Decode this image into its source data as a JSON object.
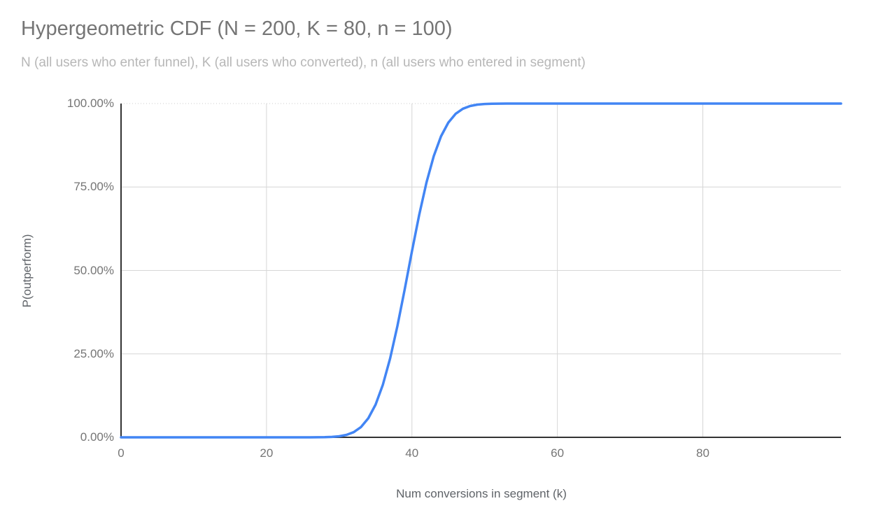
{
  "header": {
    "title": "Hypergeometric CDF (N = 200, K = 80, n = 100)",
    "subtitle": "N (all users who enter funnel), K (all users who converted), n (all users who entered in segment)"
  },
  "chart_data": {
    "type": "line",
    "title": "Hypergeometric CDF (N = 200, K = 80, n = 100)",
    "subtitle": "N (all users who enter funnel), K (all users who converted), n (all users who entered in segment)",
    "xlabel": "Num conversions in segment (k)",
    "ylabel": "P(outperform)",
    "xlim": [
      0,
      99
    ],
    "ylim": [
      0,
      1
    ],
    "x_ticks": [
      0,
      20,
      40,
      60,
      80
    ],
    "y_ticks": [
      {
        "value": 0.0,
        "label": "0.00%"
      },
      {
        "value": 0.25,
        "label": "25.00%"
      },
      {
        "value": 0.5,
        "label": "50.00%"
      },
      {
        "value": 0.75,
        "label": "75.00%"
      },
      {
        "value": 1.0,
        "label": "100.00%"
      }
    ],
    "grid": true,
    "legend": "none",
    "series": [
      {
        "name": "P(outperform)",
        "color": "#4285F4",
        "points": [
          [
            0,
            0
          ],
          [
            5,
            0
          ],
          [
            10,
            0
          ],
          [
            15,
            0
          ],
          [
            20,
            0
          ],
          [
            24,
            0
          ],
          [
            25,
            0
          ],
          [
            26,
            0.0001
          ],
          [
            27,
            0.0002
          ],
          [
            28,
            0.0005
          ],
          [
            29,
            0.0013
          ],
          [
            30,
            0.0032
          ],
          [
            31,
            0.0073
          ],
          [
            32,
            0.0156
          ],
          [
            33,
            0.0309
          ],
          [
            34,
            0.0571
          ],
          [
            35,
            0.098
          ],
          [
            36,
            0.1574
          ],
          [
            37,
            0.2364
          ],
          [
            38,
            0.3333
          ],
          [
            39,
            0.4428
          ],
          [
            40,
            0.5572
          ],
          [
            41,
            0.6667
          ],
          [
            42,
            0.7636
          ],
          [
            43,
            0.8426
          ],
          [
            44,
            0.902
          ],
          [
            45,
            0.9429
          ],
          [
            46,
            0.9691
          ],
          [
            47,
            0.9844
          ],
          [
            48,
            0.9927
          ],
          [
            49,
            0.9968
          ],
          [
            50,
            0.9987
          ],
          [
            51,
            0.9995
          ],
          [
            52,
            0.9998
          ],
          [
            53,
            0.9999
          ],
          [
            54,
            1
          ],
          [
            60,
            1
          ],
          [
            70,
            1
          ],
          [
            80,
            1
          ],
          [
            90,
            1
          ],
          [
            99,
            1
          ]
        ]
      }
    ]
  },
  "colors": {
    "background": "#ffffff",
    "title": "#757575",
    "subtitle": "#b7b7b7",
    "tick_label": "#757575",
    "axis_title": "#5f6368",
    "axis_line": "#333333",
    "gridline": "#d6d6d6",
    "gridline_top_dotted": "#cccccc",
    "series": "#4285F4"
  }
}
